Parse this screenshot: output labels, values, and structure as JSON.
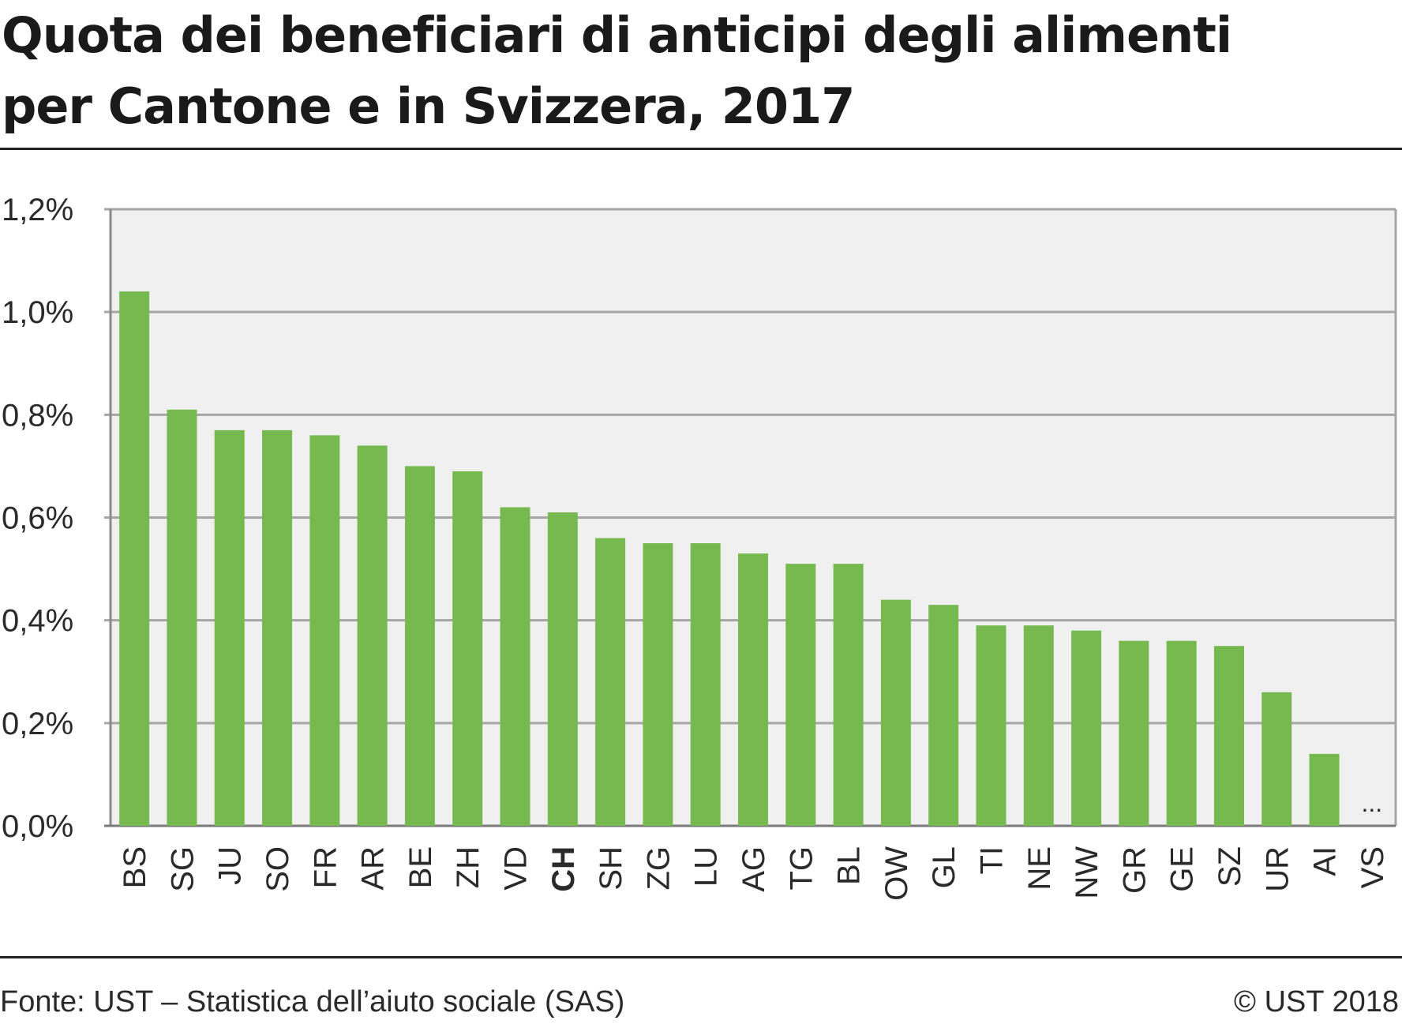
{
  "header": {
    "title_line1": "Quota dei beneficiari di anticipi degli alimenti",
    "title_line2": "per Cantone e in Svizzera, 2017"
  },
  "footer": {
    "source": "Fonte: UST – Statistica dell’aiuto sociale (SAS)",
    "copyright": "© UST 2018"
  },
  "chart_data": {
    "type": "bar",
    "title": "Quota dei beneficiari di anticipi degli alimenti per Cantone e in Svizzera, 2017",
    "xlabel": "",
    "ylabel": "",
    "ylim": [
      0,
      1.2
    ],
    "y_ticks": [
      "0,0%",
      "0,2%",
      "0,4%",
      "0,6%",
      "0,8%",
      "1,0%",
      "1,2%"
    ],
    "y_tick_values": [
      0,
      0.2,
      0.4,
      0.6,
      0.8,
      1.0,
      1.2
    ],
    "grid": true,
    "categories": [
      "BS",
      "SG",
      "JU",
      "SO",
      "FR",
      "AR",
      "BE",
      "ZH",
      "VD",
      "CH",
      "SH",
      "ZG",
      "LU",
      "AG",
      "TG",
      "BL",
      "OW",
      "GL",
      "TI",
      "NE",
      "NW",
      "GR",
      "GE",
      "SZ",
      "UR",
      "AI",
      "VS"
    ],
    "values": [
      1.04,
      0.81,
      0.77,
      0.77,
      0.76,
      0.74,
      0.7,
      0.69,
      0.62,
      0.61,
      0.56,
      0.55,
      0.55,
      0.53,
      0.51,
      0.51,
      0.44,
      0.43,
      0.39,
      0.39,
      0.38,
      0.36,
      0.36,
      0.35,
      0.26,
      0.14,
      null
    ],
    "highlight_category": "CH",
    "missing_label": "...",
    "bar_color": "#76b94f",
    "plot_bg": "#f0f0f0",
    "grid_color": "#a6a6a6"
  }
}
